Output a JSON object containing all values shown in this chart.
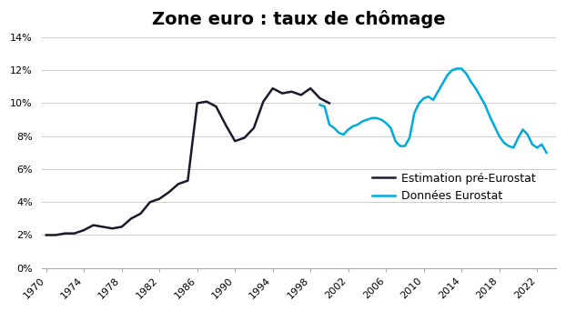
{
  "title": "Zone euro : taux de chômage",
  "title_fontsize": 14,
  "background_color": "#ffffff",
  "pre_eurostat_color": "#1a1a2e",
  "eurostat_color": "#00aadd",
  "legend_label_pre": "Estimation pré-Eurostat",
  "legend_label_euro": "Données Eurostat",
  "ylim": [
    0,
    0.14
  ],
  "yticks": [
    0,
    0.02,
    0.04,
    0.06,
    0.08,
    0.1,
    0.12,
    0.14
  ],
  "pre_eurostat": {
    "x": [
      1970,
      1971,
      1972,
      1973,
      1974,
      1975,
      1976,
      1977,
      1978,
      1979,
      1980,
      1981,
      1982,
      1983,
      1984,
      1985,
      1986,
      1987,
      1988,
      1989,
      1990,
      1991,
      1992,
      1993,
      1994,
      1995,
      1996,
      1997,
      1998,
      1999,
      2000
    ],
    "y": [
      0.02,
      0.02,
      0.021,
      0.021,
      0.023,
      0.026,
      0.025,
      0.024,
      0.025,
      0.03,
      0.033,
      0.04,
      0.042,
      0.046,
      0.051,
      0.053,
      0.1,
      0.101,
      0.098,
      0.087,
      0.077,
      0.079,
      0.085,
      0.101,
      0.109,
      0.106,
      0.107,
      0.105,
      0.109,
      0.103,
      0.1
    ]
  },
  "eurostat": {
    "x": [
      1999.0,
      1999.5,
      2000.0,
      2000.5,
      2001.0,
      2001.5,
      2002.0,
      2002.5,
      2003.0,
      2003.5,
      2004.0,
      2004.5,
      2005.0,
      2005.5,
      2006.0,
      2006.5,
      2007.0,
      2007.5,
      2008.0,
      2008.5,
      2009.0,
      2009.5,
      2010.0,
      2010.5,
      2011.0,
      2011.5,
      2012.0,
      2012.5,
      2013.0,
      2013.5,
      2014.0,
      2014.5,
      2015.0,
      2015.5,
      2016.0,
      2016.5,
      2017.0,
      2017.5,
      2018.0,
      2018.5,
      2019.0,
      2019.5,
      2020.0,
      2020.5,
      2021.0,
      2021.5,
      2022.0,
      2022.5,
      2023.0
    ],
    "y": [
      0.099,
      0.098,
      0.087,
      0.085,
      0.082,
      0.081,
      0.084,
      0.086,
      0.087,
      0.089,
      0.09,
      0.091,
      0.091,
      0.09,
      0.088,
      0.085,
      0.077,
      0.074,
      0.074,
      0.079,
      0.094,
      0.1,
      0.103,
      0.104,
      0.102,
      0.107,
      0.112,
      0.117,
      0.12,
      0.121,
      0.121,
      0.118,
      0.113,
      0.109,
      0.104,
      0.099,
      0.092,
      0.086,
      0.08,
      0.076,
      0.074,
      0.073,
      0.079,
      0.084,
      0.081,
      0.075,
      0.073,
      0.075,
      0.07
    ]
  },
  "xticks": [
    1970,
    1974,
    1978,
    1982,
    1986,
    1990,
    1994,
    1998,
    2002,
    2006,
    2010,
    2014,
    2018,
    2022
  ],
  "xlim": [
    1969.5,
    2024
  ]
}
